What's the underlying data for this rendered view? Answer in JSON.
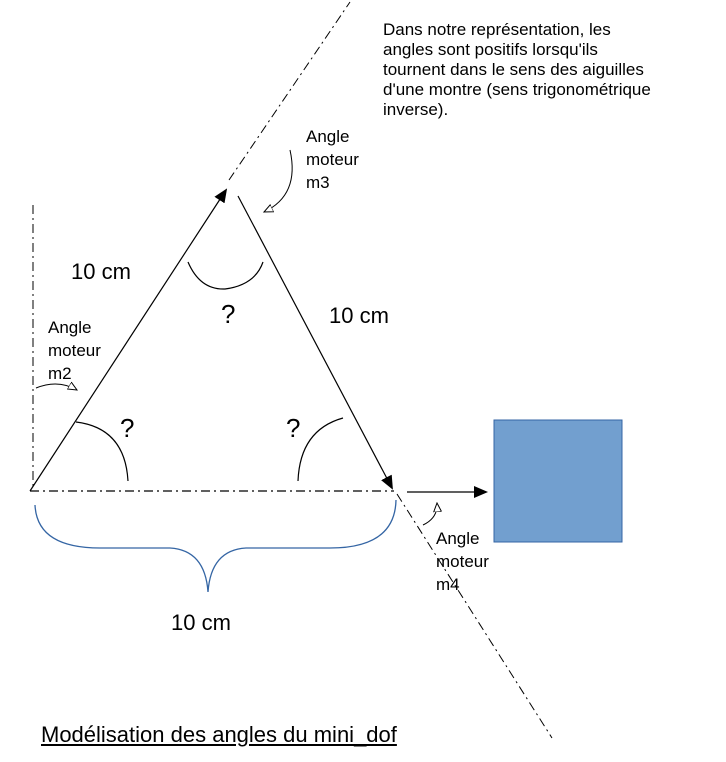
{
  "note": {
    "lines": [
      "Dans notre représentation, les",
      "angles sont positifs lorsqu'ils",
      "tournent dans le sens des aiguilles",
      "d'une montre (sens trigonométrique",
      "inverse)."
    ]
  },
  "labels": {
    "side_left": "10 cm",
    "side_right": "10 cm",
    "side_base": "10 cm",
    "angle_top": "?",
    "angle_left": "?",
    "angle_right": "?"
  },
  "motors": {
    "m2": [
      "Angle",
      "moteur",
      "m2"
    ],
    "m3": [
      "Angle",
      "moteur",
      "m3"
    ],
    "m4": [
      "Angle",
      "moteur",
      "m4"
    ]
  },
  "caption": "Modélisation des angles du mini_dof",
  "colors": {
    "square_fill": "#729fcf",
    "square_stroke": "#3465a4",
    "brace": "#3465a4",
    "line": "#000000"
  }
}
